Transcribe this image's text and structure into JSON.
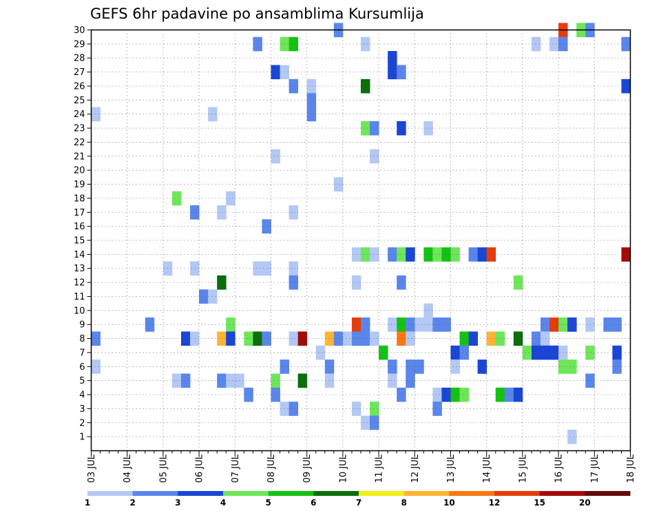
{
  "chart_data": {
    "type": "heatmap",
    "title": "GEFS 6hr padavine po ansamblima Kursumlija",
    "x_labels": [
      "03 JUL",
      "04 JUL",
      "05 JUL",
      "06 JUL",
      "07 JUL",
      "08 JUL",
      "09 JUL",
      "10 JUL",
      "11 JUL",
      "12 JUL",
      "13 JUL",
      "14 JUL",
      "15 JUL",
      "16 JUL",
      "17 JUL",
      "18 JUL"
    ],
    "x_range": [
      "03 JUL 00Z",
      "18 JUL 00Z"
    ],
    "x_step_hours": 6,
    "y_range": [
      0,
      30
    ],
    "y_ticks": [
      1,
      2,
      3,
      4,
      5,
      6,
      7,
      8,
      9,
      10,
      11,
      12,
      13,
      14,
      15,
      16,
      17,
      18,
      19,
      20,
      21,
      22,
      23,
      24,
      25,
      26,
      27,
      28,
      29,
      30
    ],
    "grid": true,
    "colorbar": {
      "labels": [
        "1",
        "2",
        "3",
        "4",
        "5",
        "6",
        "7",
        "8",
        "10",
        "12",
        "15",
        "20"
      ],
      "colors": [
        "#b4c8f5",
        "#5a86eb",
        "#1a46d6",
        "#6ee65a",
        "#14c214",
        "#0a6e0a",
        "#f0f014",
        "#ffb432",
        "#fa7814",
        "#e63c0a",
        "#a50a0a",
        "#640a0a"
      ]
    },
    "cells": [
      {
        "member": 30,
        "step": 27,
        "color": 1
      },
      {
        "member": 30,
        "step": 52,
        "color": 9
      },
      {
        "member": 30,
        "step": 54,
        "color": 3
      },
      {
        "member": 30,
        "step": 55,
        "color": 1
      },
      {
        "member": 29,
        "step": 18,
        "color": 1
      },
      {
        "member": 29,
        "step": 21,
        "color": 3
      },
      {
        "member": 29,
        "step": 22,
        "color": 4
      },
      {
        "member": 29,
        "step": 30,
        "color": 0
      },
      {
        "member": 29,
        "step": 49,
        "color": 0
      },
      {
        "member": 29,
        "step": 51,
        "color": 0
      },
      {
        "member": 29,
        "step": 52,
        "color": 1
      },
      {
        "member": 29,
        "step": 59,
        "color": 1
      },
      {
        "member": 28,
        "step": 33,
        "color": 2
      },
      {
        "member": 27,
        "step": 20,
        "color": 2
      },
      {
        "member": 27,
        "step": 21,
        "color": 0
      },
      {
        "member": 27,
        "step": 33,
        "color": 2
      },
      {
        "member": 27,
        "step": 34,
        "color": 1
      },
      {
        "member": 26,
        "step": 22,
        "color": 1
      },
      {
        "member": 26,
        "step": 24,
        "color": 0
      },
      {
        "member": 26,
        "step": 30,
        "color": 5
      },
      {
        "member": 26,
        "step": 59,
        "color": 2
      },
      {
        "member": 25,
        "step": 24,
        "color": 1
      },
      {
        "member": 24,
        "step": 0,
        "color": 0
      },
      {
        "member": 24,
        "step": 13,
        "color": 0
      },
      {
        "member": 24,
        "step": 24,
        "color": 1
      },
      {
        "member": 23,
        "step": 30,
        "color": 3
      },
      {
        "member": 23,
        "step": 31,
        "color": 1
      },
      {
        "member": 23,
        "step": 34,
        "color": 2
      },
      {
        "member": 23,
        "step": 37,
        "color": 0
      },
      {
        "member": 21,
        "step": 20,
        "color": 0
      },
      {
        "member": 21,
        "step": 31,
        "color": 0
      },
      {
        "member": 19,
        "step": 27,
        "color": 0
      },
      {
        "member": 18,
        "step": 9,
        "color": 3
      },
      {
        "member": 18,
        "step": 15,
        "color": 0
      },
      {
        "member": 17,
        "step": 11,
        "color": 1
      },
      {
        "member": 17,
        "step": 14,
        "color": 0
      },
      {
        "member": 17,
        "step": 22,
        "color": 0
      },
      {
        "member": 16,
        "step": 19,
        "color": 1
      },
      {
        "member": 14,
        "step": 29,
        "color": 0
      },
      {
        "member": 14,
        "step": 30,
        "color": 3
      },
      {
        "member": 14,
        "step": 31,
        "color": 0
      },
      {
        "member": 14,
        "step": 33,
        "color": 1
      },
      {
        "member": 14,
        "step": 34,
        "color": 3
      },
      {
        "member": 14,
        "step": 35,
        "color": 2
      },
      {
        "member": 14,
        "step": 37,
        "color": 4
      },
      {
        "member": 14,
        "step": 38,
        "color": 3
      },
      {
        "member": 14,
        "step": 39,
        "color": 4
      },
      {
        "member": 14,
        "step": 40,
        "color": 3
      },
      {
        "member": 14,
        "step": 42,
        "color": 1
      },
      {
        "member": 14,
        "step": 43,
        "color": 2
      },
      {
        "member": 14,
        "step": 44,
        "color": 9
      },
      {
        "member": 14,
        "step": 59,
        "color": 10
      },
      {
        "member": 13,
        "step": 8,
        "color": 0
      },
      {
        "member": 13,
        "step": 11,
        "color": 0
      },
      {
        "member": 13,
        "step": 18,
        "color": 0
      },
      {
        "member": 13,
        "step": 19,
        "color": 0
      },
      {
        "member": 13,
        "step": 22,
        "color": 0
      },
      {
        "member": 12,
        "step": 14,
        "color": 5
      },
      {
        "member": 12,
        "step": 22,
        "color": 1
      },
      {
        "member": 12,
        "step": 29,
        "color": 0
      },
      {
        "member": 12,
        "step": 34,
        "color": 1
      },
      {
        "member": 12,
        "step": 47,
        "color": 3
      },
      {
        "member": 11,
        "step": 12,
        "color": 1
      },
      {
        "member": 11,
        "step": 13,
        "color": 0
      },
      {
        "member": 10,
        "step": 37,
        "color": 0
      },
      {
        "member": 9,
        "step": 6,
        "color": 1
      },
      {
        "member": 9,
        "step": 15,
        "color": 3
      },
      {
        "member": 9,
        "step": 29,
        "color": 9
      },
      {
        "member": 9,
        "step": 30,
        "color": 1
      },
      {
        "member": 9,
        "step": 33,
        "color": 0
      },
      {
        "member": 9,
        "step": 34,
        "color": 4
      },
      {
        "member": 9,
        "step": 35,
        "color": 1
      },
      {
        "member": 9,
        "step": 36,
        "color": 0
      },
      {
        "member": 9,
        "step": 37,
        "color": 0
      },
      {
        "member": 9,
        "step": 38,
        "color": 1
      },
      {
        "member": 9,
        "step": 39,
        "color": 1
      },
      {
        "member": 9,
        "step": 50,
        "color": 1
      },
      {
        "member": 9,
        "step": 51,
        "color": 9
      },
      {
        "member": 9,
        "step": 52,
        "color": 3
      },
      {
        "member": 9,
        "step": 53,
        "color": 2
      },
      {
        "member": 9,
        "step": 55,
        "color": 0
      },
      {
        "member": 9,
        "step": 57,
        "color": 1
      },
      {
        "member": 9,
        "step": 58,
        "color": 1
      },
      {
        "member": 8,
        "step": 0,
        "color": 1
      },
      {
        "member": 8,
        "step": 10,
        "color": 2
      },
      {
        "member": 8,
        "step": 11,
        "color": 0
      },
      {
        "member": 8,
        "step": 14,
        "color": 7
      },
      {
        "member": 8,
        "step": 15,
        "color": 2
      },
      {
        "member": 8,
        "step": 17,
        "color": 3
      },
      {
        "member": 8,
        "step": 18,
        "color": 5
      },
      {
        "member": 8,
        "step": 19,
        "color": 1
      },
      {
        "member": 8,
        "step": 22,
        "color": 0
      },
      {
        "member": 8,
        "step": 23,
        "color": 10
      },
      {
        "member": 8,
        "step": 26,
        "color": 7
      },
      {
        "member": 8,
        "step": 27,
        "color": 1
      },
      {
        "member": 8,
        "step": 28,
        "color": 0
      },
      {
        "member": 8,
        "step": 29,
        "color": 1
      },
      {
        "member": 8,
        "step": 30,
        "color": 1
      },
      {
        "member": 8,
        "step": 31,
        "color": 0
      },
      {
        "member": 8,
        "step": 34,
        "color": 8
      },
      {
        "member": 8,
        "step": 35,
        "color": 0
      },
      {
        "member": 8,
        "step": 41,
        "color": 4
      },
      {
        "member": 8,
        "step": 42,
        "color": 2
      },
      {
        "member": 8,
        "step": 44,
        "color": 7
      },
      {
        "member": 8,
        "step": 45,
        "color": 3
      },
      {
        "member": 8,
        "step": 47,
        "color": 5
      },
      {
        "member": 8,
        "step": 49,
        "color": 1
      },
      {
        "member": 8,
        "step": 50,
        "color": 0
      },
      {
        "member": 7,
        "step": 25,
        "color": 0
      },
      {
        "member": 7,
        "step": 32,
        "color": 4
      },
      {
        "member": 7,
        "step": 40,
        "color": 2
      },
      {
        "member": 7,
        "step": 41,
        "color": 1
      },
      {
        "member": 7,
        "step": 48,
        "color": 3
      },
      {
        "member": 7,
        "step": 49,
        "color": 2
      },
      {
        "member": 7,
        "step": 50,
        "color": 2
      },
      {
        "member": 7,
        "step": 51,
        "color": 2
      },
      {
        "member": 7,
        "step": 52,
        "color": 0
      },
      {
        "member": 7,
        "step": 55,
        "color": 3
      },
      {
        "member": 7,
        "step": 58,
        "color": 2
      },
      {
        "member": 6,
        "step": 0,
        "color": 0
      },
      {
        "member": 6,
        "step": 21,
        "color": 1
      },
      {
        "member": 6,
        "step": 26,
        "color": 1
      },
      {
        "member": 6,
        "step": 33,
        "color": 1
      },
      {
        "member": 6,
        "step": 35,
        "color": 1
      },
      {
        "member": 6,
        "step": 36,
        "color": 1
      },
      {
        "member": 6,
        "step": 40,
        "color": 0
      },
      {
        "member": 6,
        "step": 43,
        "color": 2
      },
      {
        "member": 6,
        "step": 52,
        "color": 3
      },
      {
        "member": 6,
        "step": 53,
        "color": 3
      },
      {
        "member": 6,
        "step": 58,
        "color": 1
      },
      {
        "member": 5,
        "step": 9,
        "color": 0
      },
      {
        "member": 5,
        "step": 10,
        "color": 1
      },
      {
        "member": 5,
        "step": 14,
        "color": 1
      },
      {
        "member": 5,
        "step": 15,
        "color": 0
      },
      {
        "member": 5,
        "step": 16,
        "color": 0
      },
      {
        "member": 5,
        "step": 20,
        "color": 3
      },
      {
        "member": 5,
        "step": 23,
        "color": 5
      },
      {
        "member": 5,
        "step": 26,
        "color": 0
      },
      {
        "member": 5,
        "step": 33,
        "color": 0
      },
      {
        "member": 5,
        "step": 35,
        "color": 1
      },
      {
        "member": 5,
        "step": 55,
        "color": 1
      },
      {
        "member": 4,
        "step": 17,
        "color": 1
      },
      {
        "member": 4,
        "step": 20,
        "color": 1
      },
      {
        "member": 4,
        "step": 34,
        "color": 1
      },
      {
        "member": 4,
        "step": 38,
        "color": 0
      },
      {
        "member": 4,
        "step": 39,
        "color": 2
      },
      {
        "member": 4,
        "step": 40,
        "color": 4
      },
      {
        "member": 4,
        "step": 41,
        "color": 3
      },
      {
        "member": 4,
        "step": 45,
        "color": 4
      },
      {
        "member": 4,
        "step": 46,
        "color": 1
      },
      {
        "member": 4,
        "step": 47,
        "color": 2
      },
      {
        "member": 3,
        "step": 21,
        "color": 0
      },
      {
        "member": 3,
        "step": 22,
        "color": 1
      },
      {
        "member": 3,
        "step": 29,
        "color": 0
      },
      {
        "member": 3,
        "step": 31,
        "color": 3
      },
      {
        "member": 3,
        "step": 38,
        "color": 1
      },
      {
        "member": 2,
        "step": 30,
        "color": 0
      },
      {
        "member": 2,
        "step": 31,
        "color": 1
      },
      {
        "member": 1,
        "step": 53,
        "color": 0
      }
    ]
  }
}
